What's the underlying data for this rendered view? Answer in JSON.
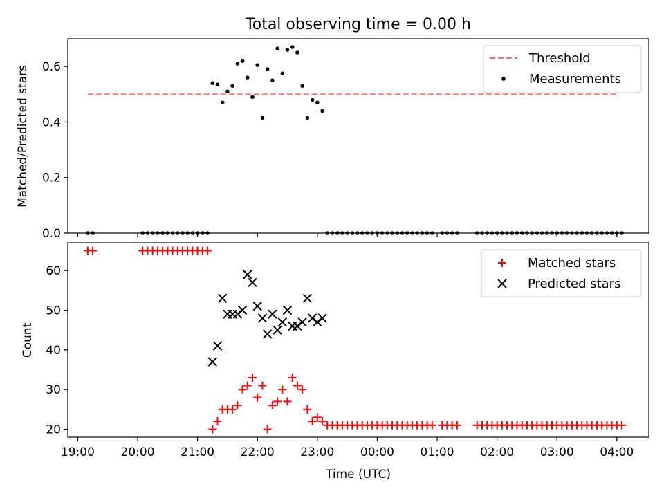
{
  "title": "Total observing time = 0.00 h",
  "colors": {
    "matched": "#ff0000",
    "predicted": "#000000",
    "threshold": "#ff7070",
    "measurement": "#000000"
  },
  "chart_data": [
    {
      "type": "scatter",
      "title": "Total observing time = 0.00 h",
      "xlabel": "",
      "ylabel": "Matched/Predicted stars",
      "xlim": [
        "18:50",
        "04:32"
      ],
      "ylim": [
        0.0,
        0.7
      ],
      "yticks": [
        0.0,
        0.2,
        0.4,
        0.6
      ],
      "yticklabels": [
        "0.0",
        "0.2",
        "0.4",
        "0.6"
      ],
      "grid": false,
      "legend_position": "top-right",
      "threshold": {
        "name": "Threshold",
        "y": 0.5,
        "x_start": "19:10",
        "x_end": "04:02"
      },
      "series": [
        {
          "name": "Measurements",
          "points": [
            [
              "19:10",
              0
            ],
            [
              "19:15",
              0
            ],
            [
              "20:05",
              0
            ],
            [
              "20:10",
              0
            ],
            [
              "20:15",
              0
            ],
            [
              "20:20",
              0
            ],
            [
              "20:25",
              0
            ],
            [
              "20:30",
              0
            ],
            [
              "20:35",
              0
            ],
            [
              "20:40",
              0
            ],
            [
              "20:45",
              0
            ],
            [
              "20:50",
              0
            ],
            [
              "20:55",
              0
            ],
            [
              "21:00",
              0
            ],
            [
              "21:05",
              0
            ],
            [
              "21:10",
              0
            ],
            [
              "21:15",
              0.54
            ],
            [
              "21:20",
              0.535
            ],
            [
              "21:25",
              0.47
            ],
            [
              "21:30",
              0.51
            ],
            [
              "21:35",
              0.53
            ],
            [
              "21:40",
              0.61
            ],
            [
              "21:45",
              0.62
            ],
            [
              "21:50",
              0.56
            ],
            [
              "21:55",
              0.49
            ],
            [
              "22:00",
              0.605
            ],
            [
              "22:05",
              0.415
            ],
            [
              "22:10",
              0.59
            ],
            [
              "22:15",
              0.55
            ],
            [
              "22:20",
              0.665
            ],
            [
              "22:25",
              0.575
            ],
            [
              "22:30",
              0.66
            ],
            [
              "22:35",
              0.67
            ],
            [
              "22:40",
              0.65
            ],
            [
              "22:45",
              0.53
            ],
            [
              "22:50",
              0.415
            ],
            [
              "22:55",
              0.48
            ],
            [
              "23:00",
              0.47
            ],
            [
              "23:05",
              0.44
            ],
            [
              "23:10",
              0
            ],
            [
              "23:15",
              0
            ],
            [
              "23:20",
              0
            ],
            [
              "23:25",
              0
            ],
            [
              "23:30",
              0
            ],
            [
              "23:35",
              0
            ],
            [
              "23:40",
              0
            ],
            [
              "23:45",
              0
            ],
            [
              "23:50",
              0
            ],
            [
              "23:55",
              0
            ],
            [
              "00:00",
              0
            ],
            [
              "00:05",
              0
            ],
            [
              "00:10",
              0
            ],
            [
              "00:15",
              0
            ],
            [
              "00:20",
              0
            ],
            [
              "00:25",
              0
            ],
            [
              "00:30",
              0
            ],
            [
              "00:35",
              0
            ],
            [
              "00:40",
              0
            ],
            [
              "00:45",
              0
            ],
            [
              "00:50",
              0
            ],
            [
              "00:55",
              0
            ],
            [
              "01:05",
              0
            ],
            [
              "01:10",
              0
            ],
            [
              "01:15",
              0
            ],
            [
              "01:20",
              0
            ],
            [
              "01:40",
              0
            ],
            [
              "01:45",
              0
            ],
            [
              "01:50",
              0
            ],
            [
              "01:55",
              0
            ],
            [
              "02:00",
              0
            ],
            [
              "02:05",
              0
            ],
            [
              "02:10",
              0
            ],
            [
              "02:15",
              0
            ],
            [
              "02:20",
              0
            ],
            [
              "02:25",
              0
            ],
            [
              "02:30",
              0
            ],
            [
              "02:35",
              0
            ],
            [
              "02:40",
              0
            ],
            [
              "02:45",
              0
            ],
            [
              "02:50",
              0
            ],
            [
              "02:55",
              0
            ],
            [
              "03:00",
              0
            ],
            [
              "03:05",
              0
            ],
            [
              "03:10",
              0
            ],
            [
              "03:15",
              0
            ],
            [
              "03:20",
              0
            ],
            [
              "03:25",
              0
            ],
            [
              "03:30",
              0
            ],
            [
              "03:35",
              0
            ],
            [
              "03:40",
              0
            ],
            [
              "03:45",
              0
            ],
            [
              "03:50",
              0
            ],
            [
              "03:55",
              0
            ],
            [
              "04:00",
              0
            ],
            [
              "04:05",
              0
            ]
          ]
        }
      ]
    },
    {
      "type": "scatter",
      "title": "",
      "xlabel": "Time (UTC)",
      "ylabel": "Count",
      "xlim": [
        "18:50",
        "04:32"
      ],
      "ylim": [
        18,
        67
      ],
      "xticks": [
        "19:00",
        "20:00",
        "21:00",
        "22:00",
        "23:00",
        "00:00",
        "01:00",
        "02:00",
        "03:00",
        "04:00"
      ],
      "yticks": [
        20,
        30,
        40,
        50,
        60
      ],
      "yticklabels": [
        "20",
        "30",
        "40",
        "50",
        "60"
      ],
      "grid": false,
      "legend_position": "top-right",
      "series": [
        {
          "name": "Matched stars",
          "marker": "plus",
          "points": [
            [
              "19:10",
              65
            ],
            [
              "19:15",
              65
            ],
            [
              "20:05",
              65
            ],
            [
              "20:10",
              65
            ],
            [
              "20:15",
              65
            ],
            [
              "20:20",
              65
            ],
            [
              "20:25",
              65
            ],
            [
              "20:30",
              65
            ],
            [
              "20:35",
              65
            ],
            [
              "20:40",
              65
            ],
            [
              "20:45",
              65
            ],
            [
              "20:50",
              65
            ],
            [
              "20:55",
              65
            ],
            [
              "21:00",
              65
            ],
            [
              "21:05",
              65
            ],
            [
              "21:10",
              65
            ],
            [
              "21:15",
              20
            ],
            [
              "21:20",
              22
            ],
            [
              "21:25",
              25
            ],
            [
              "21:30",
              25
            ],
            [
              "21:35",
              25
            ],
            [
              "21:40",
              26
            ],
            [
              "21:45",
              30
            ],
            [
              "21:50",
              31
            ],
            [
              "21:55",
              33
            ],
            [
              "22:00",
              28
            ],
            [
              "22:05",
              31
            ],
            [
              "22:10",
              20
            ],
            [
              "22:15",
              26
            ],
            [
              "22:20",
              27
            ],
            [
              "22:25",
              30
            ],
            [
              "22:30",
              27
            ],
            [
              "22:35",
              33
            ],
            [
              "22:40",
              31
            ],
            [
              "22:45",
              30
            ],
            [
              "22:50",
              25
            ],
            [
              "22:55",
              22
            ],
            [
              "23:00",
              23
            ],
            [
              "23:05",
              22
            ],
            [
              "23:10",
              21
            ],
            [
              "23:15",
              21
            ],
            [
              "23:20",
              21
            ],
            [
              "23:25",
              21
            ],
            [
              "23:30",
              21
            ],
            [
              "23:35",
              21
            ],
            [
              "23:40",
              21
            ],
            [
              "23:45",
              21
            ],
            [
              "23:50",
              21
            ],
            [
              "23:55",
              21
            ],
            [
              "00:00",
              21
            ],
            [
              "00:05",
              21
            ],
            [
              "00:10",
              21
            ],
            [
              "00:15",
              21
            ],
            [
              "00:20",
              21
            ],
            [
              "00:25",
              21
            ],
            [
              "00:30",
              21
            ],
            [
              "00:35",
              21
            ],
            [
              "00:40",
              21
            ],
            [
              "00:45",
              21
            ],
            [
              "00:50",
              21
            ],
            [
              "00:55",
              21
            ],
            [
              "01:05",
              21
            ],
            [
              "01:10",
              21
            ],
            [
              "01:15",
              21
            ],
            [
              "01:20",
              21
            ],
            [
              "01:40",
              21
            ],
            [
              "01:45",
              21
            ],
            [
              "01:50",
              21
            ],
            [
              "01:55",
              21
            ],
            [
              "02:00",
              21
            ],
            [
              "02:05",
              21
            ],
            [
              "02:10",
              21
            ],
            [
              "02:15",
              21
            ],
            [
              "02:20",
              21
            ],
            [
              "02:25",
              21
            ],
            [
              "02:30",
              21
            ],
            [
              "02:35",
              21
            ],
            [
              "02:40",
              21
            ],
            [
              "02:45",
              21
            ],
            [
              "02:50",
              21
            ],
            [
              "02:55",
              21
            ],
            [
              "03:00",
              21
            ],
            [
              "03:05",
              21
            ],
            [
              "03:10",
              21
            ],
            [
              "03:15",
              21
            ],
            [
              "03:20",
              21
            ],
            [
              "03:25",
              21
            ],
            [
              "03:30",
              21
            ],
            [
              "03:35",
              21
            ],
            [
              "03:40",
              21
            ],
            [
              "03:45",
              21
            ],
            [
              "03:50",
              21
            ],
            [
              "03:55",
              21
            ],
            [
              "04:00",
              21
            ],
            [
              "04:05",
              21
            ]
          ]
        },
        {
          "name": "Predicted stars",
          "marker": "cross",
          "points": [
            [
              "21:15",
              37
            ],
            [
              "21:20",
              41
            ],
            [
              "21:25",
              53
            ],
            [
              "21:30",
              49
            ],
            [
              "21:35",
              49
            ],
            [
              "21:40",
              49
            ],
            [
              "21:45",
              50
            ],
            [
              "21:50",
              59
            ],
            [
              "21:55",
              57
            ],
            [
              "22:00",
              51
            ],
            [
              "22:05",
              48
            ],
            [
              "22:10",
              44
            ],
            [
              "22:15",
              49
            ],
            [
              "22:20",
              45
            ],
            [
              "22:25",
              47
            ],
            [
              "22:30",
              50
            ],
            [
              "22:35",
              46
            ],
            [
              "22:40",
              46
            ],
            [
              "22:45",
              47
            ],
            [
              "22:50",
              53
            ],
            [
              "22:55",
              48
            ],
            [
              "23:00",
              47
            ],
            [
              "23:05",
              48
            ]
          ]
        }
      ]
    }
  ]
}
